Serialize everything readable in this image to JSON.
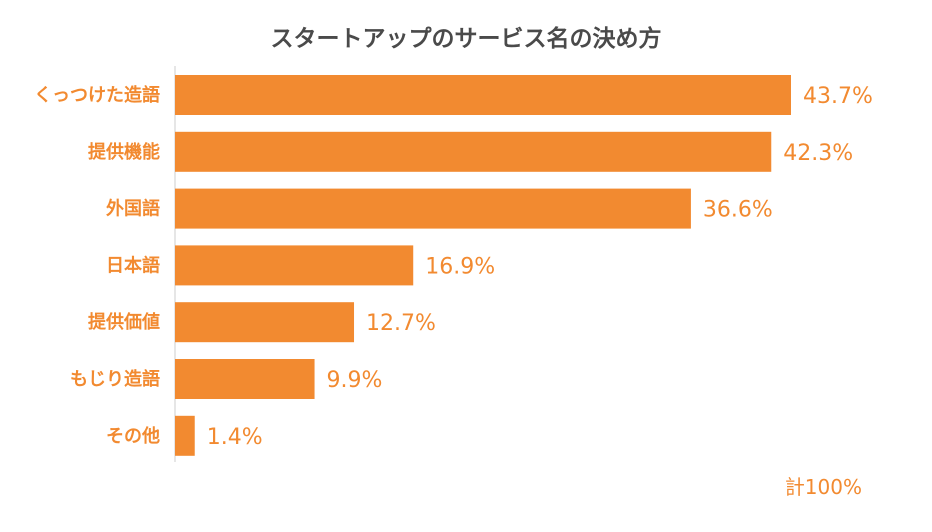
{
  "chart_data": {
    "type": "bar",
    "orientation": "horizontal",
    "title": "スタートアップのサービス名の決め方",
    "categories": [
      "くっつけた造語",
      "提供機能",
      "外国語",
      "日本語",
      "提供価値",
      "もじり造語",
      "その他"
    ],
    "values": [
      43.7,
      42.3,
      36.6,
      16.9,
      12.7,
      9.9,
      1.4
    ],
    "value_labels": [
      "43.7%",
      "42.3%",
      "36.6%",
      "16.9%",
      "12.7%",
      "9.9%",
      "1.4%"
    ],
    "unit": "%",
    "xlim": [
      0,
      43.7
    ],
    "total_label": "計100%",
    "grid": false,
    "legend": "none"
  },
  "colors": {
    "bar": "#f28a30",
    "label": "#f28a30",
    "title": "#4a4a4a",
    "axis": "#cccccc"
  }
}
